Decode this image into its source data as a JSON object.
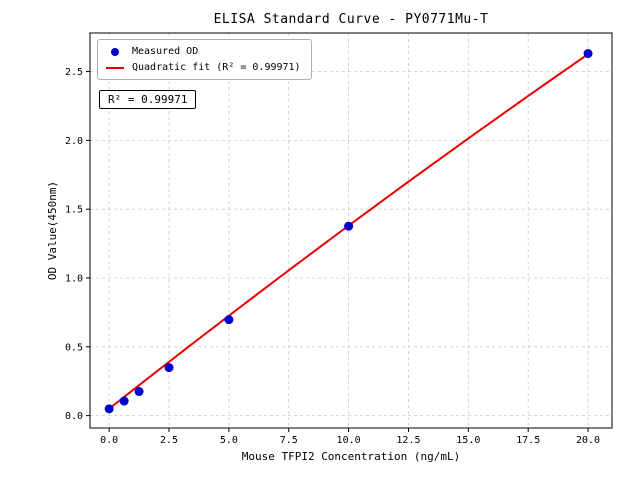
{
  "chart_data": {
    "type": "scatter",
    "title": "ELISA Standard Curve - PY0771Mu-T",
    "xlabel": "Mouse TFPI2 Concentration (ng/mL)",
    "ylabel": "OD Value(450nm)",
    "xlim": [
      -0.8,
      21.0
    ],
    "ylim": [
      -0.09,
      2.78
    ],
    "x_ticks": [
      0.0,
      2.5,
      5.0,
      7.5,
      10.0,
      12.5,
      15.0,
      17.5,
      20.0
    ],
    "x_tick_labels": [
      "0.0",
      "2.5",
      "5.0",
      "7.5",
      "10.0",
      "12.5",
      "15.0",
      "17.5",
      "20.0"
    ],
    "y_ticks": [
      0.0,
      0.5,
      1.0,
      1.5,
      2.0,
      2.5
    ],
    "y_tick_labels": [
      "0.0",
      "0.5",
      "1.0",
      "1.5",
      "2.0",
      "2.5"
    ],
    "grid": true,
    "points": {
      "x": [
        0.0,
        0.625,
        1.25,
        2.5,
        5.0,
        10.0,
        20.0
      ],
      "y": [
        0.049,
        0.106,
        0.175,
        0.349,
        0.697,
        1.376,
        2.631
      ]
    },
    "fit": {
      "type": "quadratic",
      "a": 0.05,
      "b": 0.1372,
      "c": -0.00042,
      "x_start": 0.0,
      "x_end": 20.0,
      "r_squared": 0.99971
    },
    "legend": [
      {
        "label": "Measured OD",
        "marker": "circle",
        "color": "#0000cc"
      },
      {
        "label": "Quadratic fit (R² = 0.99971)",
        "marker": "line",
        "color": "#e80000"
      }
    ],
    "annotation": "R² = 0.99971",
    "colors": {
      "points": "#0000cc",
      "fit_line": "#e80000",
      "grid": "#c9c9c9",
      "axis": "#000000",
      "background": "#ffffff"
    }
  }
}
